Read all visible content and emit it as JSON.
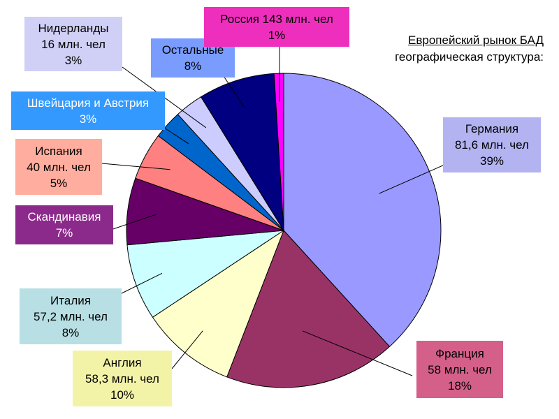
{
  "title": {
    "line1": "Европейский  рынок БАД",
    "line2": "географическая  структура:"
  },
  "chart_data": {
    "type": "pie",
    "title": "Европейский  рынок БАД географическая  структура:",
    "slices": [
      {
        "key": "germany",
        "name": "Германия",
        "info": "81,6 млн. чел",
        "pct_label": "39%",
        "value": 39,
        "color": "#9999ff",
        "label_bg": "#b3b3f2",
        "text_color": "#000000"
      },
      {
        "key": "france",
        "name": "Франция",
        "info": "58 млн. чел",
        "pct_label": "18%",
        "value": 18,
        "color": "#993366",
        "label_bg": "#d4608a",
        "text_color": "#000000"
      },
      {
        "key": "england",
        "name": "Англия",
        "info": "58,3 млн. чел",
        "pct_label": "10%",
        "value": 10,
        "color": "#ffffcc",
        "label_bg": "#f3f3a8",
        "text_color": "#000000"
      },
      {
        "key": "italy",
        "name": "Италия",
        "info": "57,2 млн. чел",
        "pct_label": "8%",
        "value": 8,
        "color": "#ccffff",
        "label_bg": "#b7dfe4",
        "text_color": "#000000"
      },
      {
        "key": "scandinavia",
        "name": "Скандинавия",
        "info": "",
        "pct_label": "7%",
        "value": 7,
        "color": "#660066",
        "label_bg": "#8b2a8b",
        "text_color": "#ffffff"
      },
      {
        "key": "spain",
        "name": "Испания",
        "info": "40 млн. чел",
        "pct_label": "5%",
        "value": 5,
        "color": "#ff8080",
        "label_bg": "#ffad9e",
        "text_color": "#000000"
      },
      {
        "key": "swiss_austria",
        "name": "Швейцария и Австрия",
        "info": "",
        "pct_label": "3%",
        "value": 3,
        "color": "#0066cc",
        "label_bg": "#3399ff",
        "text_color": "#ffffff"
      },
      {
        "key": "netherlands",
        "name": "Нидерланды",
        "info": "16 млн. чел",
        "pct_label": "3%",
        "value": 3,
        "color": "#ccccff",
        "label_bg": "#d0d0f6",
        "text_color": "#000000"
      },
      {
        "key": "others",
        "name": "Остальные",
        "info": "",
        "pct_label": "8%",
        "value": 8,
        "color": "#000080",
        "label_bg": "#7a9cff",
        "text_color": "#000000"
      },
      {
        "key": "russia",
        "name": "Россия 143 млн. чел",
        "info": "",
        "pct_label": "1%",
        "value": 1,
        "color": "#ff00ff",
        "label_bg": "#ee2fbd",
        "text_color": "#000000"
      }
    ]
  }
}
